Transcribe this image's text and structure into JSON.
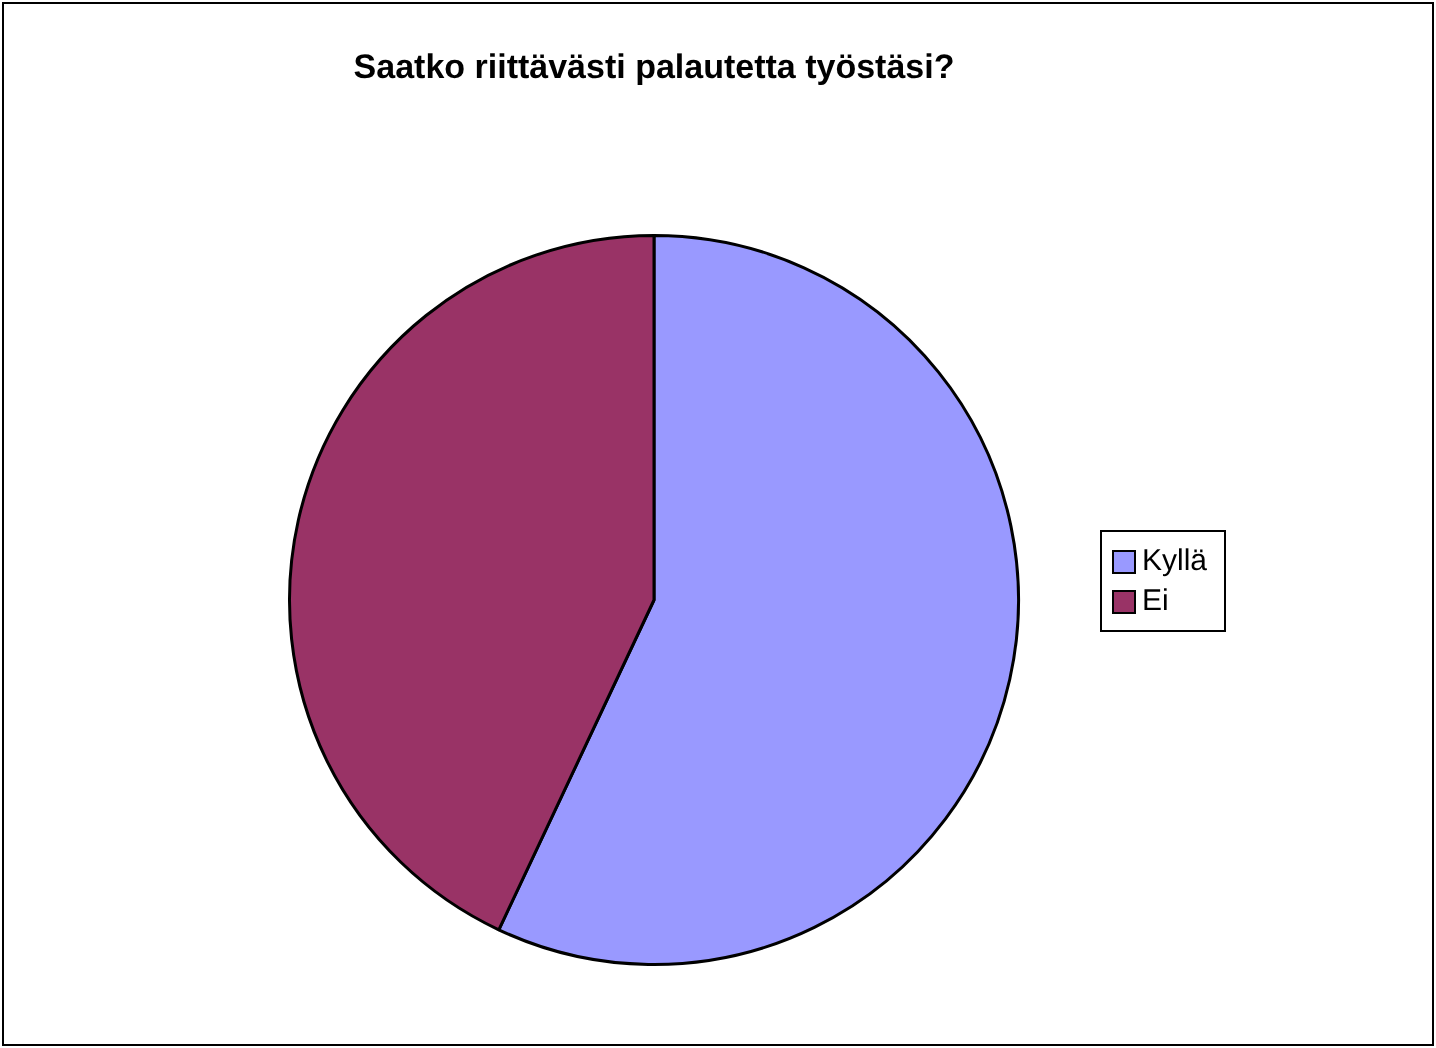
{
  "chart_data": {
    "type": "pie",
    "title": "Saatko riittävästi palautetta työstäsi?",
    "categories": [
      "Kyllä",
      "Ei"
    ],
    "values": [
      57,
      43
    ],
    "colors": [
      "#9999ff",
      "#993366"
    ],
    "legend": "right"
  }
}
